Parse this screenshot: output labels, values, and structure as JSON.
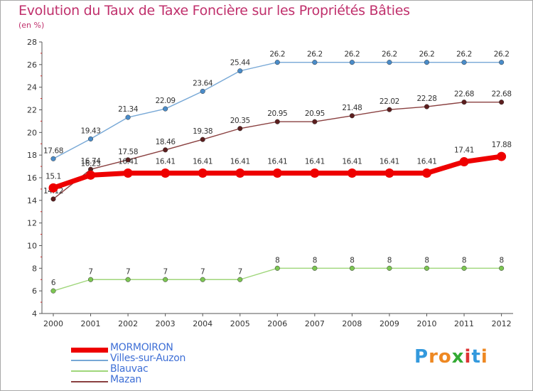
{
  "title": "Evolution du Taux de Taxe Foncière sur les Propriétés Bâties",
  "unit_label": "(en %)",
  "brand": {
    "letters": [
      "P",
      "r",
      "o",
      "x",
      "i",
      "t",
      "i"
    ],
    "colors": [
      "#3399dd",
      "#ee8822",
      "#ee8822",
      "#33aa33",
      "#dd3333",
      "#3399dd",
      "#ee8822"
    ]
  },
  "chart_data": {
    "type": "line",
    "title": "Evolution du Taux de Taxe Foncière sur les Propriétés Bâties",
    "ylabel": "(en %)",
    "x": [
      "2000",
      "2001",
      "2002",
      "2003",
      "2004",
      "2005",
      "2006",
      "2007",
      "2008",
      "2009",
      "2010",
      "2011",
      "2012"
    ],
    "ylim": [
      4,
      28
    ],
    "yticks": [
      "4",
      "6",
      "8",
      "10",
      "12",
      "14",
      "16",
      "18",
      "20",
      "22",
      "24",
      "26",
      "28"
    ],
    "grid": false,
    "legend": "bottom-left",
    "series": [
      {
        "name": "Villes-sur-Auzon",
        "color": "#77a8d6",
        "marker_color": "#4a8cc9",
        "values": [
          17.68,
          19.43,
          21.34,
          22.09,
          23.64,
          25.44,
          26.2,
          26.2,
          26.2,
          26.2,
          26.2,
          26.2,
          26.2
        ],
        "labels": [
          "17.68",
          "19.43",
          "21.34",
          "22.09",
          "23.64",
          "25.44",
          "26.2",
          "26.2",
          "26.2",
          "26.2",
          "26.2",
          "26.2",
          "26.2"
        ]
      },
      {
        "name": "Mazan",
        "color": "#8a4040",
        "marker_color": "#5c1e1e",
        "values": [
          14.12,
          16.74,
          17.58,
          18.46,
          19.38,
          20.35,
          20.95,
          20.95,
          21.48,
          22.02,
          22.28,
          22.68,
          22.68
        ],
        "labels": [
          "14.12",
          "16.74",
          "17.58",
          "18.46",
          "19.38",
          "20.35",
          "20.95",
          "20.95",
          "21.48",
          "22.02",
          "22.28",
          "22.68",
          "22.68"
        ]
      },
      {
        "name": "Blauvac",
        "color": "#9fd67a",
        "marker_color": "#7cc652",
        "values": [
          6,
          7,
          7,
          7,
          7,
          7,
          8,
          8,
          8,
          8,
          8,
          8,
          8
        ],
        "labels": [
          "6",
          "7",
          "7",
          "7",
          "7",
          "7",
          "8",
          "8",
          "8",
          "8",
          "8",
          "8",
          "8"
        ]
      },
      {
        "name": "MORMOIRON",
        "color": "#ee0000",
        "marker_color": "#ee0000",
        "values": [
          15.1,
          16.23,
          16.41,
          16.41,
          16.41,
          16.41,
          16.41,
          16.41,
          16.41,
          16.41,
          16.41,
          17.41,
          17.88
        ],
        "labels": [
          "15.1",
          "16.23",
          "16.41",
          "16.41",
          "16.41",
          "16.41",
          "16.41",
          "16.41",
          "16.41",
          "16.41",
          "16.41",
          "17.41",
          "17.88"
        ]
      }
    ],
    "legend_entries": [
      {
        "name": "MORMOIRON",
        "color": "#ee0000",
        "text_color": "#3e6fd6"
      },
      {
        "name": "Villes-sur-Auzon",
        "color": "#77a8d6",
        "text_color": "#3e6fd6"
      },
      {
        "name": "Blauvac",
        "color": "#9fd67a",
        "text_color": "#3e6fd6"
      },
      {
        "name": "Mazan",
        "color": "#8a4040",
        "text_color": "#3e6fd6"
      }
    ]
  }
}
